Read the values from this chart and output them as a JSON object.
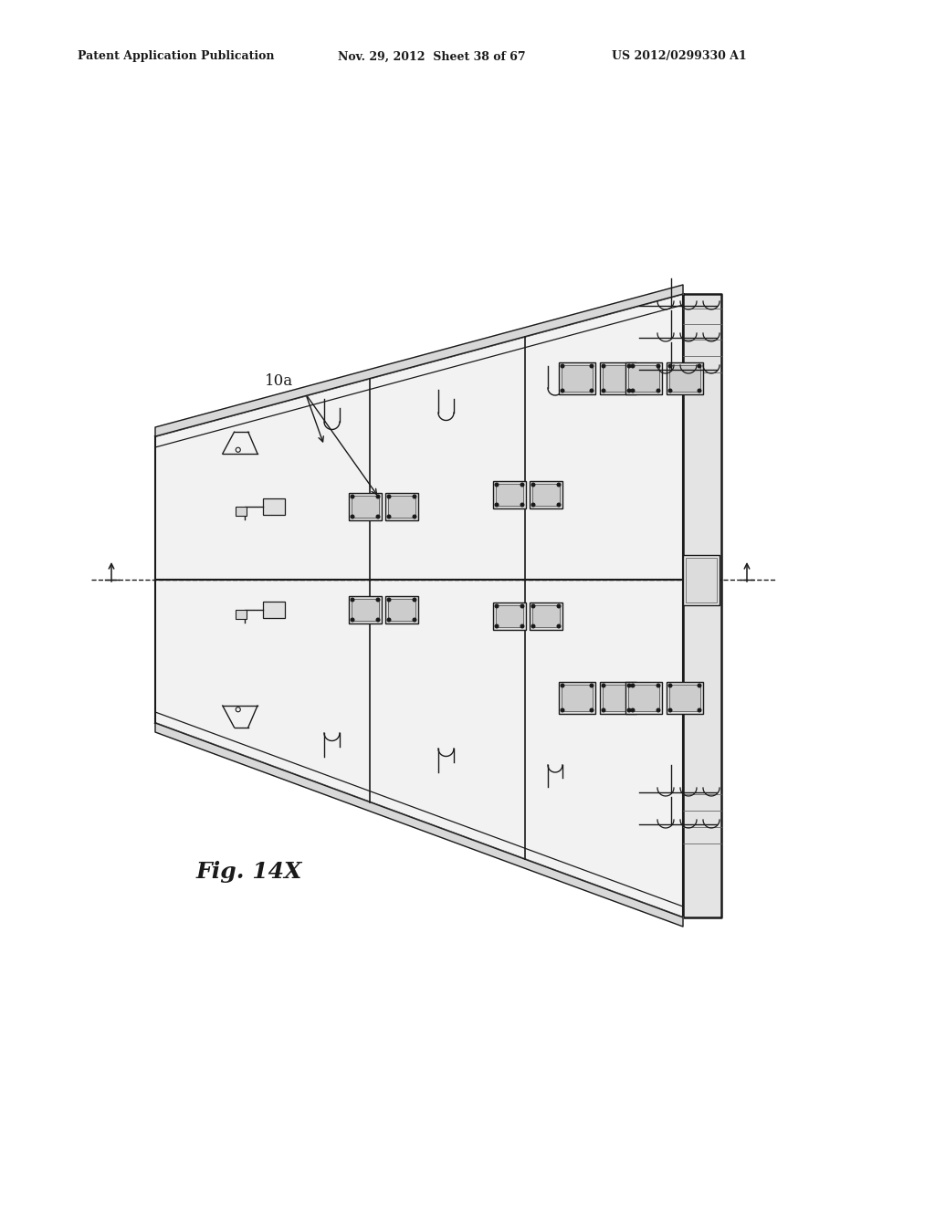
{
  "background_color": "#ffffff",
  "header_left": "Patent Application Publication",
  "header_center": "Nov. 29, 2012  Sheet 38 of 67",
  "header_right": "US 2012/0299330 A1",
  "figure_label": "Fig. 14X",
  "annotation_label": "10a",
  "line_color": "#1a1a1a",
  "light_line_color": "#666666",
  "fig_width": 10.24,
  "fig_height": 13.2
}
